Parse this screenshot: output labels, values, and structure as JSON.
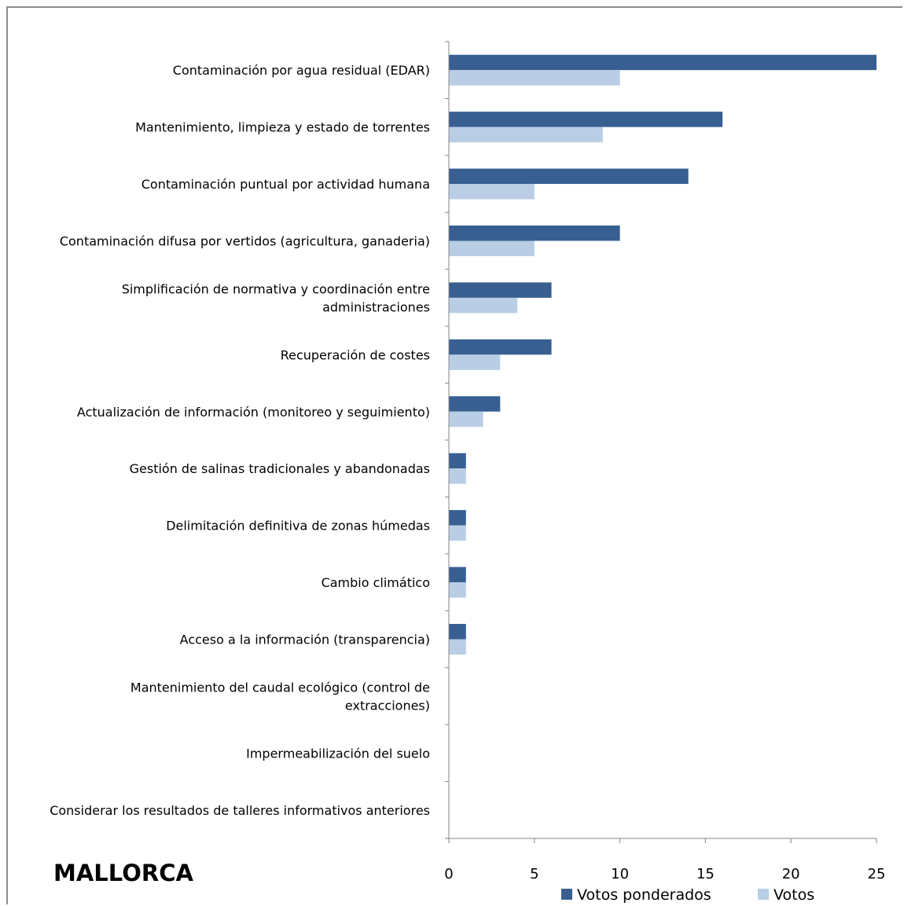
{
  "chart_data": {
    "type": "bar",
    "orientation": "horizontal",
    "categories": [
      "Contaminación por agua residual (EDAR)",
      "Mantenimiento, limpieza y estado de torrentes",
      "Contaminación puntual por actividad humana",
      "Contaminación difusa por vertidos (agricultura, ganaderia)",
      "Simplificación de normativa y coordinación entre administraciones",
      "Recuperación de costes",
      "Actualización de información (monitoreo y seguimiento)",
      "Gestión de salinas tradicionales y abandonadas",
      "Delimitación definitiva de zonas húmedas",
      "Cambio climático",
      "Acceso a la información (transparencia)",
      "Mantenimiento del caudal ecológico (control de extracciones)",
      "Impermeabilización del suelo",
      "Considerar los resultados de talleres informativos anteriores"
    ],
    "category_lines": [
      [
        "Contaminación por agua residual (EDAR)"
      ],
      [
        "Mantenimiento, limpieza y estado de torrentes"
      ],
      [
        "Contaminación puntual por actividad humana"
      ],
      [
        "Contaminación difusa por vertidos (agricultura, ganaderia)"
      ],
      [
        "Simplificación de normativa y coordinación entre",
        "administraciones"
      ],
      [
        "Recuperación de costes"
      ],
      [
        "Actualización de información (monitoreo y seguimiento)"
      ],
      [
        "Gestión de salinas tradicionales y abandonadas"
      ],
      [
        "Delimitación definitiva de zonas húmedas"
      ],
      [
        "Cambio climático"
      ],
      [
        "Acceso a la información (transparencia)"
      ],
      [
        "Mantenimiento del caudal ecológico (control de",
        "extracciones)"
      ],
      [
        "Impermeabilización del suelo"
      ],
      [
        "Considerar los resultados de talleres informativos anteriores"
      ]
    ],
    "series": [
      {
        "name": "Votos ponderados",
        "color": "#375f92",
        "values": [
          25,
          16,
          14,
          10,
          6,
          6,
          3,
          1,
          1,
          1,
          1,
          0,
          0,
          0
        ]
      },
      {
        "name": "Votos",
        "color": "#b9cde5",
        "values": [
          10,
          9,
          5,
          5,
          4,
          3,
          2,
          1,
          1,
          1,
          1,
          0,
          0,
          0
        ]
      }
    ],
    "xlim": [
      0,
      25
    ],
    "xticks": [
      "0",
      "5",
      "10",
      "15",
      "20",
      "25"
    ],
    "xlabel": "",
    "ylabel": "",
    "grid": false,
    "legend_position": "bottom",
    "annotation": "MALLORCA"
  }
}
